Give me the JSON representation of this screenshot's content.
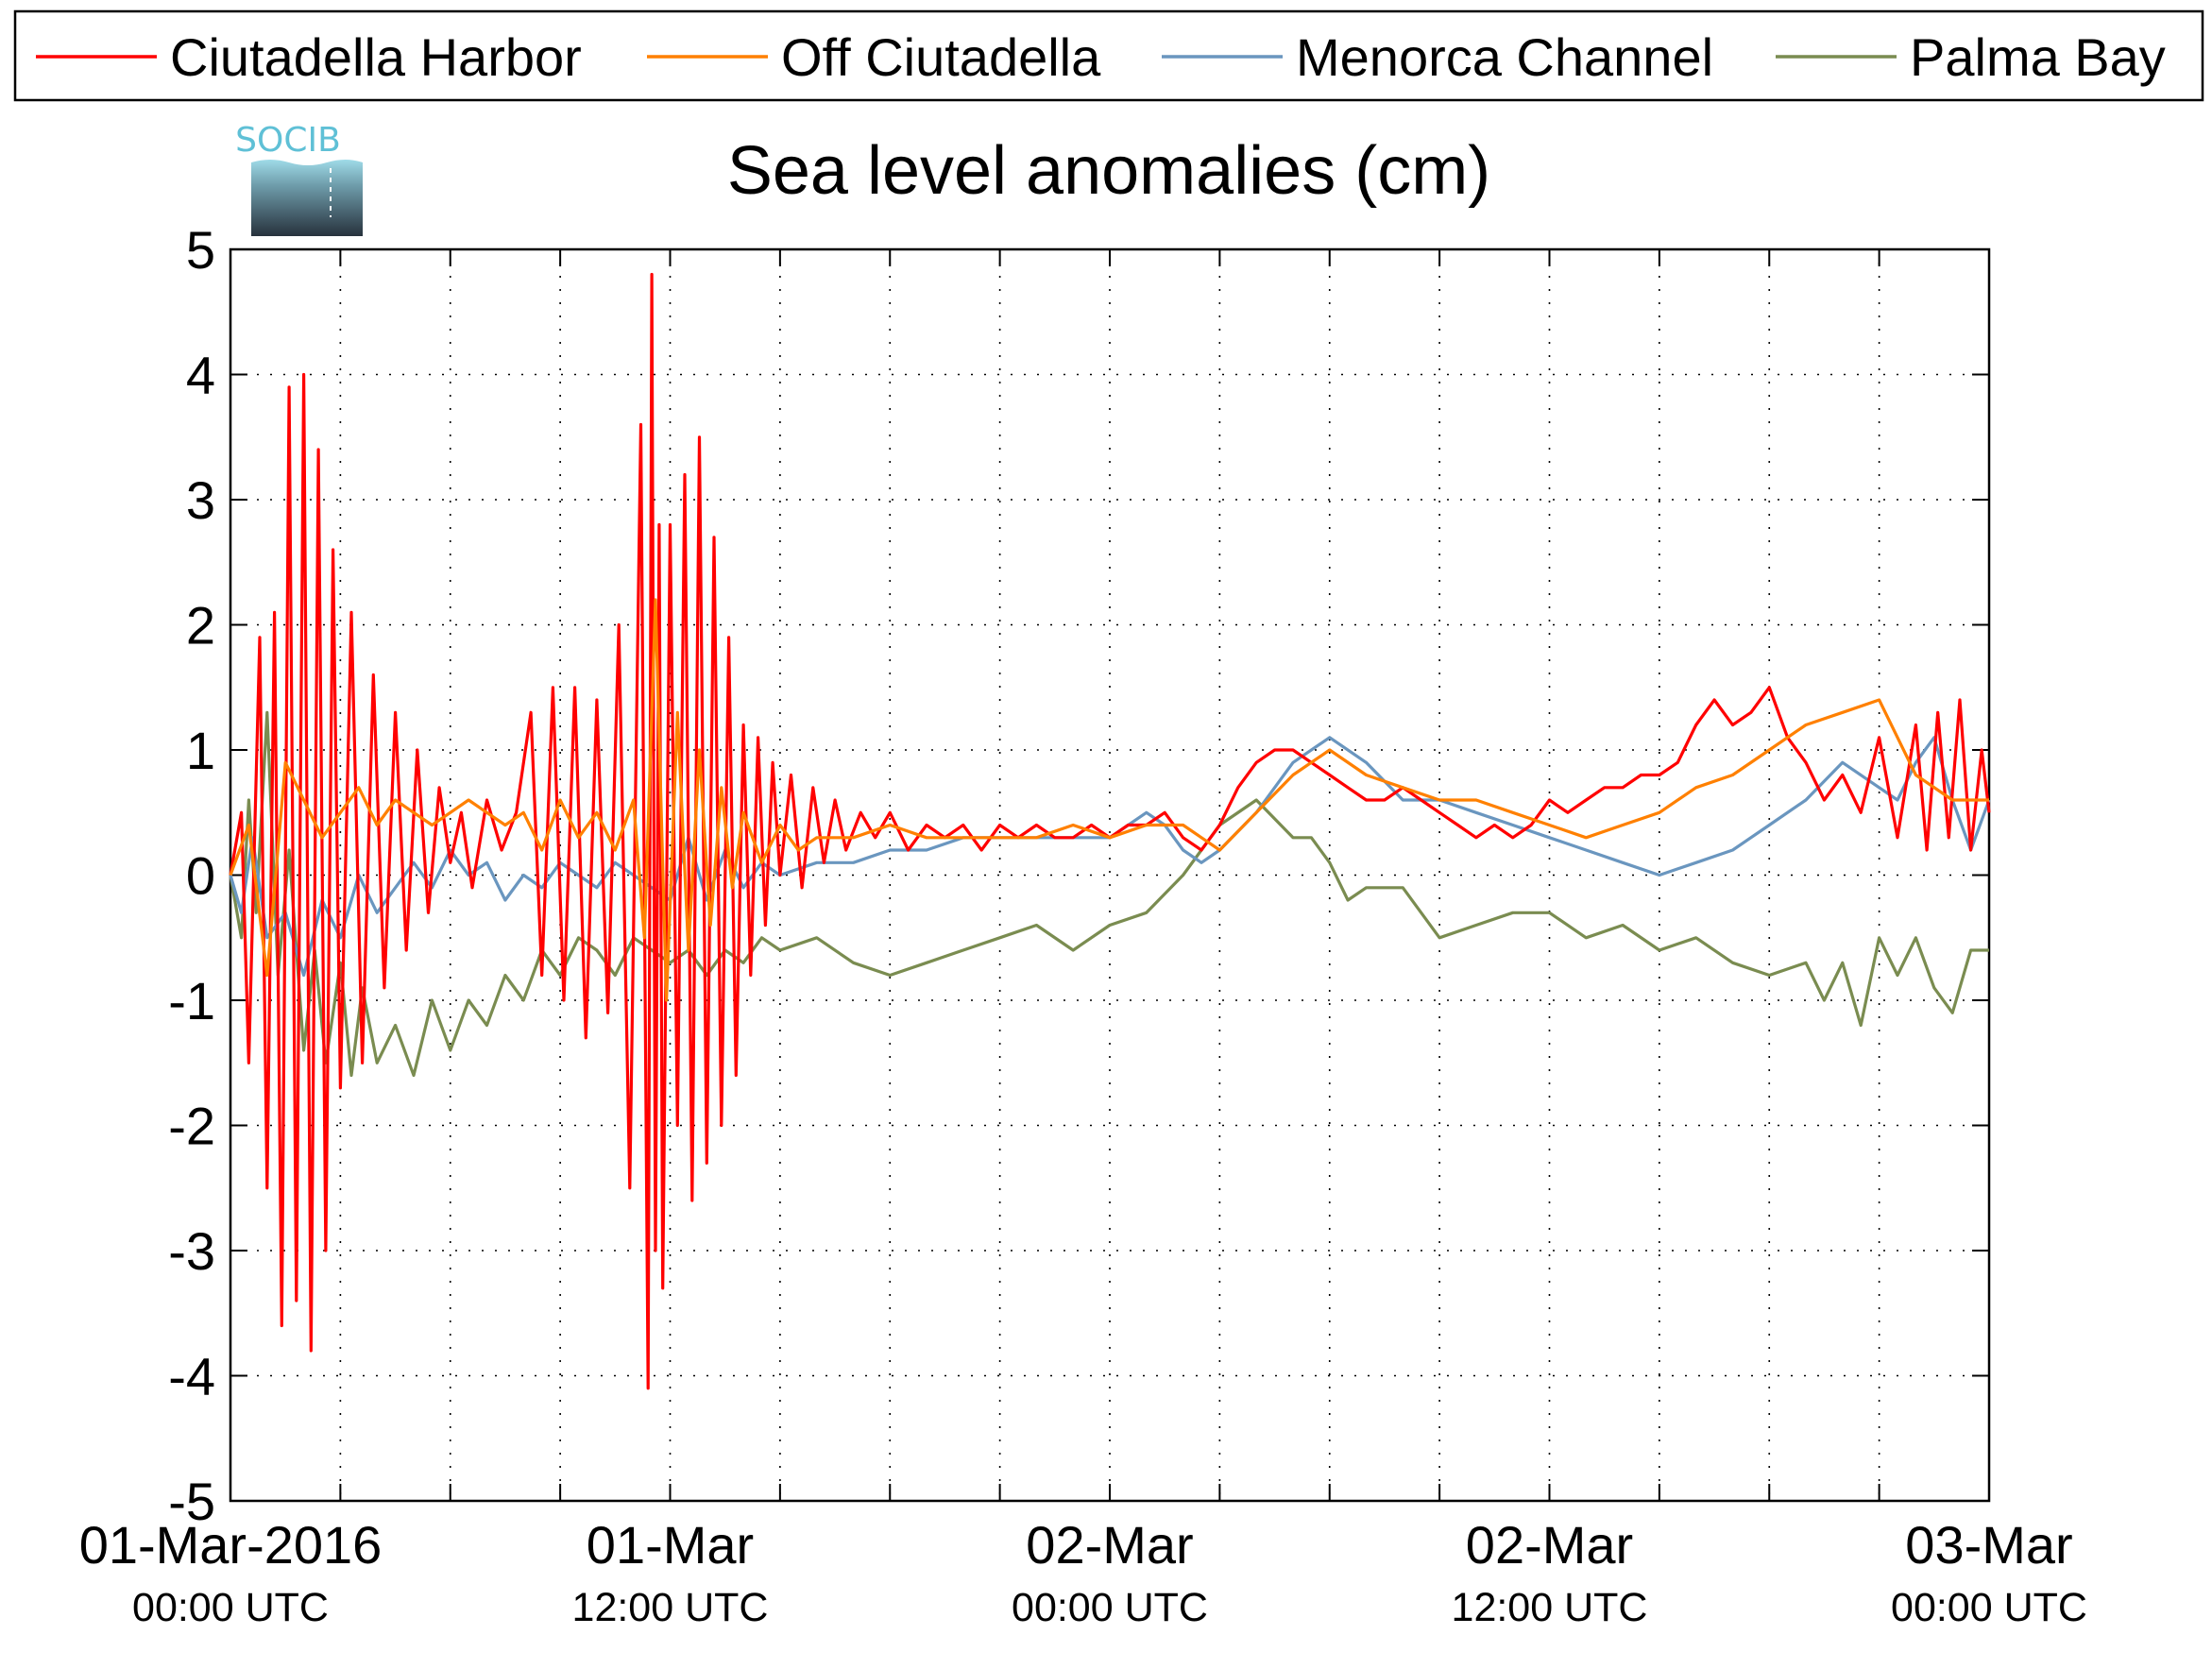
{
  "chart_data": {
    "type": "line",
    "title": "Sea level anomalies (cm)",
    "logo_text": "SOCIB",
    "xlabel": "",
    "ylabel": "",
    "ylim": [
      -5,
      5
    ],
    "y_ticks": [
      -5,
      -4,
      -3,
      -2,
      -1,
      0,
      1,
      2,
      3,
      4,
      5
    ],
    "xlim_hours": [
      0,
      48
    ],
    "x_ticks": [
      {
        "hours": 0,
        "date": "01-Mar-2016",
        "time": "00:00 UTC"
      },
      {
        "hours": 12,
        "date": "01-Mar",
        "time": "12:00 UTC"
      },
      {
        "hours": 24,
        "date": "02-Mar",
        "time": "00:00 UTC"
      },
      {
        "hours": 36,
        "date": "02-Mar",
        "time": "12:00 UTC"
      },
      {
        "hours": 48,
        "date": "03-Mar",
        "time": "00:00 UTC"
      }
    ],
    "grid": true,
    "grid_step_hours": 3,
    "legend_position": "top",
    "series": [
      {
        "name": "Ciutadella Harbor",
        "color": "#ff0000",
        "x": [
          0,
          0.3,
          0.5,
          0.8,
          1.0,
          1.2,
          1.4,
          1.6,
          1.8,
          2.0,
          2.2,
          2.4,
          2.6,
          2.8,
          3.0,
          3.3,
          3.6,
          3.9,
          4.2,
          4.5,
          4.8,
          5.1,
          5.4,
          5.7,
          6.0,
          6.3,
          6.6,
          7.0,
          7.4,
          7.8,
          8.2,
          8.5,
          8.8,
          9.1,
          9.4,
          9.7,
          10.0,
          10.3,
          10.6,
          10.9,
          11.2,
          11.4,
          11.5,
          11.6,
          11.7,
          11.8,
          12.0,
          12.2,
          12.4,
          12.6,
          12.8,
          13.0,
          13.2,
          13.4,
          13.6,
          13.8,
          14.0,
          14.2,
          14.4,
          14.6,
          14.8,
          15.0,
          15.3,
          15.6,
          15.9,
          16.2,
          16.5,
          16.8,
          17.2,
          17.6,
          18.0,
          18.5,
          19.0,
          19.5,
          20.0,
          20.5,
          21.0,
          21.5,
          22.0,
          22.5,
          23.0,
          23.5,
          24.0,
          24.5,
          25.0,
          25.5,
          26.0,
          26.5,
          27.0,
          27.5,
          28.0,
          28.5,
          29.0,
          29.5,
          30.0,
          30.5,
          31.0,
          31.5,
          32.0,
          32.5,
          33.0,
          33.5,
          34.0,
          34.5,
          35.0,
          35.5,
          36.0,
          36.5,
          37.0,
          37.5,
          38.0,
          38.5,
          39.0,
          39.5,
          40.0,
          40.5,
          41.0,
          41.5,
          42.0,
          42.5,
          43.0,
          43.5,
          44.0,
          44.5,
          45.0,
          45.5,
          46.0,
          46.3,
          46.6,
          46.9,
          47.2,
          47.5,
          47.8,
          48.0
        ],
        "y": [
          0.0,
          0.5,
          -1.5,
          1.9,
          -2.5,
          2.1,
          -3.6,
          3.9,
          -3.4,
          4.0,
          -3.8,
          3.4,
          -3.0,
          2.6,
          -1.7,
          2.1,
          -1.5,
          1.6,
          -0.9,
          1.3,
          -0.6,
          1.0,
          -0.3,
          0.7,
          0.1,
          0.5,
          -0.1,
          0.6,
          0.2,
          0.5,
          1.3,
          -0.8,
          1.5,
          -1.0,
          1.5,
          -1.3,
          1.4,
          -1.1,
          2.0,
          -2.5,
          3.6,
          -4.1,
          4.8,
          -3.0,
          2.8,
          -3.3,
          2.8,
          -2.0,
          3.2,
          -2.6,
          3.5,
          -2.3,
          2.7,
          -2.0,
          1.9,
          -1.6,
          1.2,
          -0.8,
          1.1,
          -0.4,
          0.9,
          0.0,
          0.8,
          -0.1,
          0.7,
          0.1,
          0.6,
          0.2,
          0.5,
          0.3,
          0.5,
          0.2,
          0.4,
          0.3,
          0.4,
          0.2,
          0.4,
          0.3,
          0.4,
          0.3,
          0.3,
          0.4,
          0.3,
          0.4,
          0.4,
          0.5,
          0.3,
          0.2,
          0.4,
          0.7,
          0.9,
          1.0,
          1.0,
          0.9,
          0.8,
          0.7,
          0.6,
          0.6,
          0.7,
          0.6,
          0.5,
          0.4,
          0.3,
          0.4,
          0.3,
          0.4,
          0.6,
          0.5,
          0.6,
          0.7,
          0.7,
          0.8,
          0.8,
          0.9,
          1.2,
          1.4,
          1.2,
          1.3,
          1.5,
          1.1,
          0.9,
          0.6,
          0.8,
          0.5,
          1.1,
          0.3,
          1.2,
          0.2,
          1.3,
          0.3,
          1.4,
          0.2,
          1.0,
          0.5
        ],
        "labels": [
          "Ciutadella Harbor"
        ]
      },
      {
        "name": "Off Ciutadella",
        "color": "#ff8000",
        "x": [
          0,
          0.5,
          1.0,
          1.5,
          2.0,
          2.5,
          3.0,
          3.5,
          4.0,
          4.5,
          5.0,
          5.5,
          6.0,
          6.5,
          7.0,
          7.5,
          8.0,
          8.5,
          9.0,
          9.5,
          10.0,
          10.5,
          11.0,
          11.3,
          11.6,
          11.9,
          12.2,
          12.5,
          12.8,
          13.1,
          13.4,
          13.7,
          14.0,
          14.5,
          15.0,
          15.5,
          16.0,
          17.0,
          18.0,
          19.0,
          20.0,
          21.0,
          22.0,
          23.0,
          24.0,
          25.0,
          26.0,
          27.0,
          28.0,
          29.0,
          30.0,
          31.0,
          32.0,
          33.0,
          34.0,
          35.0,
          36.0,
          37.0,
          38.0,
          39.0,
          40.0,
          41.0,
          42.0,
          43.0,
          44.0,
          45.0,
          46.0,
          47.0,
          48.0
        ],
        "y": [
          0.0,
          0.4,
          -0.8,
          0.9,
          0.6,
          0.3,
          0.5,
          0.7,
          0.4,
          0.6,
          0.5,
          0.4,
          0.5,
          0.6,
          0.5,
          0.4,
          0.5,
          0.2,
          0.6,
          0.3,
          0.5,
          0.2,
          0.6,
          -0.5,
          2.2,
          -1.0,
          1.3,
          -0.6,
          1.0,
          -0.4,
          0.7,
          -0.1,
          0.5,
          0.1,
          0.4,
          0.2,
          0.3,
          0.3,
          0.4,
          0.3,
          0.3,
          0.3,
          0.3,
          0.4,
          0.3,
          0.4,
          0.4,
          0.2,
          0.5,
          0.8,
          1.0,
          0.8,
          0.7,
          0.6,
          0.6,
          0.5,
          0.4,
          0.3,
          0.4,
          0.5,
          0.7,
          0.8,
          1.0,
          1.2,
          1.3,
          1.4,
          0.8,
          0.6,
          0.6
        ],
        "labels": [
          "Off Ciutadella"
        ]
      },
      {
        "name": "Menorca Channel",
        "color": "#6a96bf",
        "x": [
          0,
          0.3,
          0.6,
          1.0,
          1.5,
          2.0,
          2.5,
          3.0,
          3.5,
          4.0,
          4.5,
          5.0,
          5.5,
          6.0,
          6.5,
          7.0,
          7.5,
          8.0,
          8.5,
          9.0,
          9.5,
          10.0,
          10.5,
          11.0,
          11.5,
          12.0,
          12.5,
          13.0,
          13.5,
          14.0,
          14.5,
          15.0,
          16.0,
          17.0,
          18.0,
          19.0,
          20.0,
          21.0,
          22.0,
          23.0,
          24.0,
          25.0,
          25.5,
          26.0,
          26.5,
          27.0,
          28.0,
          29.0,
          30.0,
          31.0,
          32.0,
          33.0,
          34.0,
          35.0,
          36.0,
          37.0,
          38.0,
          39.0,
          40.0,
          41.0,
          42.0,
          43.0,
          44.0,
          45.0,
          45.5,
          46.0,
          46.5,
          47.0,
          47.5,
          48.0
        ],
        "y": [
          0.0,
          -0.3,
          0.3,
          -0.5,
          -0.3,
          -0.8,
          -0.2,
          -0.5,
          0.0,
          -0.3,
          -0.1,
          0.1,
          -0.1,
          0.2,
          0.0,
          0.1,
          -0.2,
          0.0,
          -0.1,
          0.1,
          0.0,
          -0.1,
          0.1,
          0.0,
          -0.1,
          -0.2,
          0.3,
          -0.2,
          0.2,
          -0.1,
          0.1,
          0.0,
          0.1,
          0.1,
          0.2,
          0.2,
          0.3,
          0.3,
          0.3,
          0.3,
          0.3,
          0.5,
          0.4,
          0.2,
          0.1,
          0.2,
          0.5,
          0.9,
          1.1,
          0.9,
          0.6,
          0.6,
          0.5,
          0.4,
          0.3,
          0.2,
          0.1,
          0.0,
          0.1,
          0.2,
          0.4,
          0.6,
          0.9,
          0.7,
          0.6,
          0.9,
          1.1,
          0.6,
          0.2,
          0.6
        ],
        "labels": [
          "Menorca Channel"
        ]
      },
      {
        "name": "Palma Bay",
        "color": "#7a8c50",
        "x": [
          0,
          0.3,
          0.5,
          0.7,
          1.0,
          1.3,
          1.6,
          2.0,
          2.3,
          2.6,
          3.0,
          3.3,
          3.6,
          4.0,
          4.5,
          5.0,
          5.5,
          6.0,
          6.5,
          7.0,
          7.5,
          8.0,
          8.5,
          9.0,
          9.5,
          10.0,
          10.5,
          11.0,
          11.5,
          12.0,
          12.5,
          13.0,
          13.5,
          14.0,
          14.5,
          15.0,
          16.0,
          17.0,
          18.0,
          19.0,
          20.0,
          21.0,
          22.0,
          23.0,
          24.0,
          25.0,
          26.0,
          27.0,
          28.0,
          29.0,
          29.5,
          30.0,
          30.5,
          31.0,
          32.0,
          33.0,
          34.0,
          35.0,
          36.0,
          37.0,
          38.0,
          39.0,
          40.0,
          41.0,
          42.0,
          43.0,
          43.5,
          44.0,
          44.5,
          45.0,
          45.5,
          46.0,
          46.5,
          47.0,
          47.5,
          48.0
        ],
        "y": [
          0.0,
          -0.5,
          0.6,
          -0.3,
          1.3,
          -0.8,
          0.2,
          -1.4,
          -0.6,
          -1.5,
          -0.7,
          -1.6,
          -0.9,
          -1.5,
          -1.2,
          -1.6,
          -1.0,
          -1.4,
          -1.0,
          -1.2,
          -0.8,
          -1.0,
          -0.6,
          -0.8,
          -0.5,
          -0.6,
          -0.8,
          -0.5,
          -0.6,
          -0.7,
          -0.6,
          -0.8,
          -0.6,
          -0.7,
          -0.5,
          -0.6,
          -0.5,
          -0.7,
          -0.8,
          -0.7,
          -0.6,
          -0.5,
          -0.4,
          -0.6,
          -0.4,
          -0.3,
          0.0,
          0.4,
          0.6,
          0.3,
          0.3,
          0.1,
          -0.2,
          -0.1,
          -0.1,
          -0.5,
          -0.4,
          -0.3,
          -0.3,
          -0.5,
          -0.4,
          -0.6,
          -0.5,
          -0.7,
          -0.8,
          -0.7,
          -1.0,
          -0.7,
          -1.2,
          -0.5,
          -0.8,
          -0.5,
          -0.9,
          -1.1,
          -0.6,
          -0.6
        ],
        "labels": [
          "Palma Bay"
        ]
      }
    ]
  }
}
